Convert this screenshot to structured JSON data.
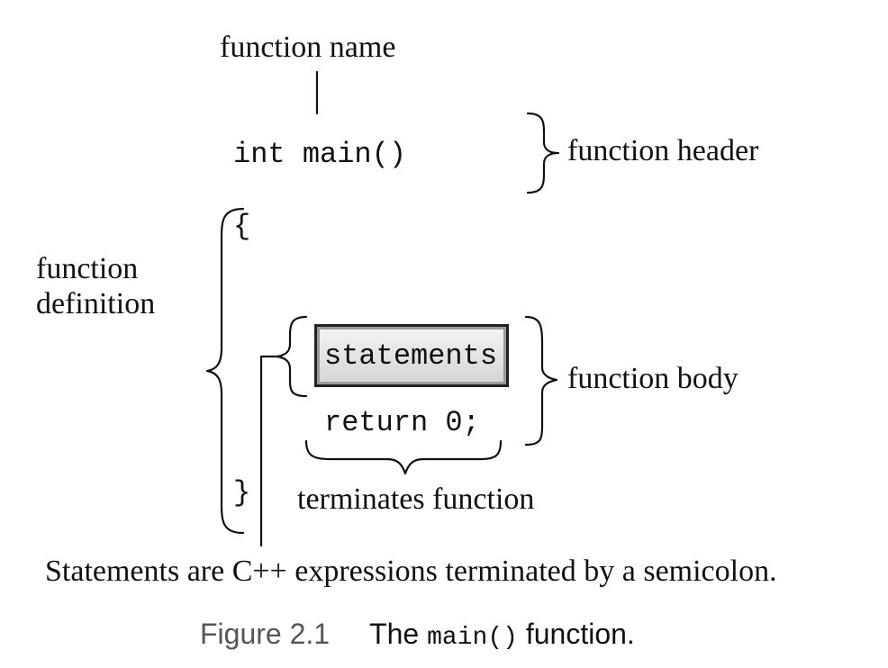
{
  "labels": {
    "function_name": "function name",
    "function_header": "function header",
    "function_definition_line1": "function",
    "function_definition_line2": "definition",
    "function_body": "function body",
    "terminates_function": "terminates function",
    "statements_note": "Statements are C++ expressions terminated by a semicolon."
  },
  "code": {
    "header": "int main()",
    "open_brace": "{",
    "statements": "statements",
    "return_line": "return 0;",
    "close_brace": "}"
  },
  "caption": {
    "figure_number": "Figure 2.1",
    "prefix": "The",
    "code_word": "main()",
    "suffix": "function."
  }
}
